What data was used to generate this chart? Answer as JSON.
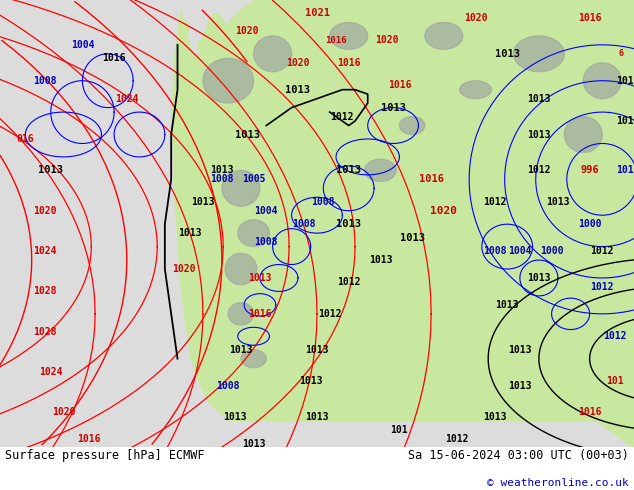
{
  "title_left": "Surface pressure [hPa] ECMWF",
  "title_right": "Sa 15-06-2024 03:00 UTC (00+03)",
  "copyright": "© weatheronline.co.uk",
  "bg_color": "#e8e8e8",
  "map_bg_color": "#e0e0e0",
  "land_green": "#c8e8a0",
  "land_gray": "#a0a8a0",
  "ocean_color": "#dcdcdc",
  "fig_width": 6.34,
  "fig_height": 4.9,
  "dpi": 100,
  "text_color": "#000000",
  "blue_text_color": "#0000cc",
  "font_size_bottom": 8.5,
  "font_size_copyright": 8
}
